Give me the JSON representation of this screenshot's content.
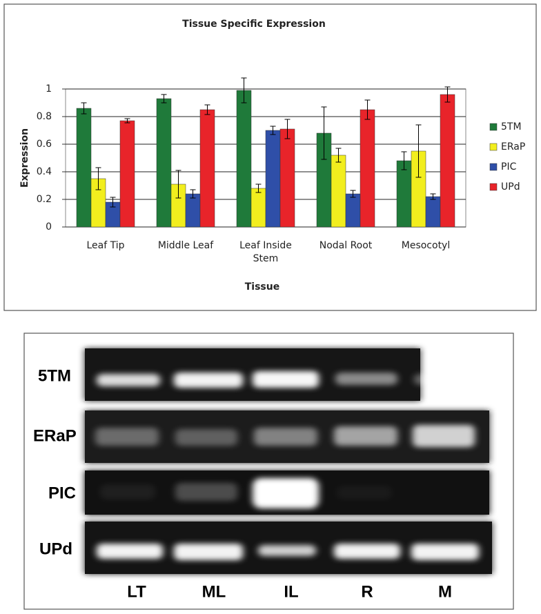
{
  "chart_data": {
    "type": "bar",
    "title": "Tissue Specific Expression",
    "x_label": "Tissue",
    "y_label": "Expression",
    "categories": [
      "Leaf Tip",
      "Middle Leaf",
      "Leaf Inside Stem",
      "Nodal Root",
      "Mesocotyl"
    ],
    "series": [
      {
        "name": "5TM",
        "color": "#1f7a3a",
        "values": [
          0.86,
          0.93,
          0.99,
          0.68,
          0.48
        ],
        "errors": [
          0.04,
          0.03,
          0.09,
          0.19,
          0.065
        ]
      },
      {
        "name": "ERaP",
        "color": "#f2ee1e",
        "values": [
          0.35,
          0.31,
          0.28,
          0.52,
          0.55
        ],
        "errors": [
          0.08,
          0.1,
          0.03,
          0.05,
          0.19
        ]
      },
      {
        "name": "PIC",
        "color": "#2f4fa8",
        "values": [
          0.18,
          0.24,
          0.7,
          0.24,
          0.22
        ],
        "errors": [
          0.035,
          0.03,
          0.03,
          0.025,
          0.02
        ]
      },
      {
        "name": "UPd",
        "color": "#e8242a",
        "values": [
          0.77,
          0.85,
          0.71,
          0.85,
          0.96
        ],
        "errors": [
          0.015,
          0.035,
          0.07,
          0.07,
          0.055
        ]
      }
    ],
    "ylim": [
      0,
      1
    ],
    "yticks": [
      0,
      0.2,
      0.4,
      0.6,
      0.8,
      1
    ],
    "grid": true,
    "legend": "right"
  },
  "gel": {
    "rows": [
      "5TM",
      "ERaP",
      "PIC",
      "UPd"
    ],
    "lanes": [
      "LT",
      "ML",
      "IL",
      "R",
      "M"
    ]
  }
}
